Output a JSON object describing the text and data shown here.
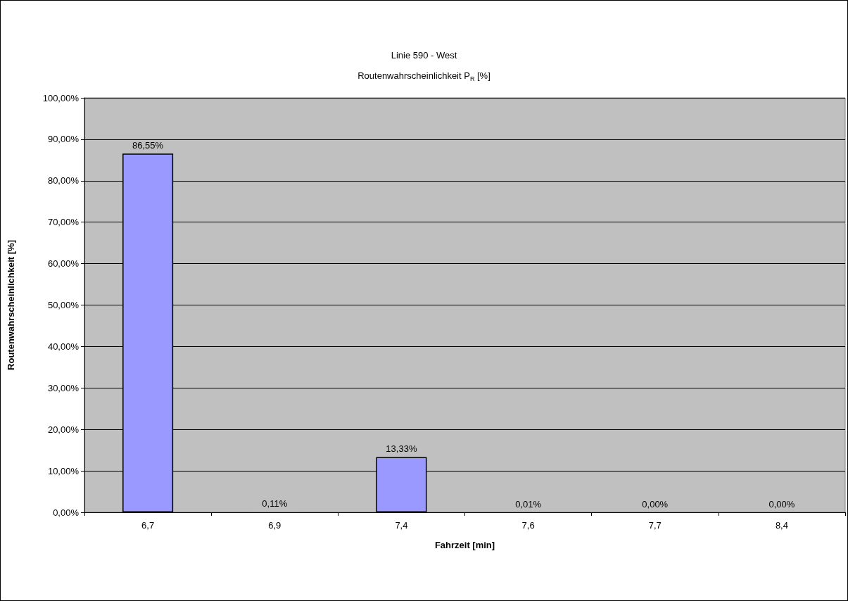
{
  "chart_data": {
    "type": "bar",
    "title": "Linie 590 - West",
    "subtitle": "Routenwahrscheinlichkeit P$_{R}$ [%]",
    "xlabel": "Fahrzeit [min]",
    "ylabel": "Routenwahrscheinlichkeit [%]",
    "categories": [
      "6,7",
      "6,9",
      "7,4",
      "7,6",
      "7,7",
      "8,4"
    ],
    "values": [
      86.55,
      0.11,
      13.33,
      0.01,
      0.0,
      0.0
    ],
    "value_labels": [
      "86,55%",
      "0,11%",
      "13,33%",
      "0,01%",
      "0,00%",
      "0,00%"
    ],
    "color": "#9999ff",
    "ylim": [
      0,
      100
    ],
    "yticks": [
      {
        "value": 0,
        "label": "0,00%"
      },
      {
        "value": 10,
        "label": "10,00%"
      },
      {
        "value": 20,
        "label": "20,00%"
      },
      {
        "value": 30,
        "label": "30,00%"
      },
      {
        "value": 40,
        "label": "40,00%"
      },
      {
        "value": 50,
        "label": "50,00%"
      },
      {
        "value": 60,
        "label": "60,00%"
      },
      {
        "value": 70,
        "label": "70,00%"
      },
      {
        "value": 80,
        "label": "80,00%"
      },
      {
        "value": 90,
        "label": "90,00%"
      },
      {
        "value": 100,
        "label": "100,00%"
      }
    ],
    "grid": "y"
  }
}
